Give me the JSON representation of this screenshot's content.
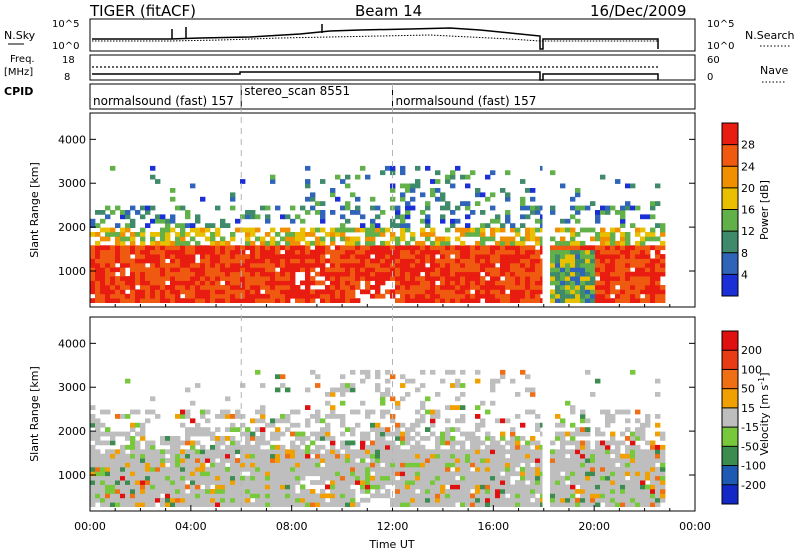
{
  "header": {
    "station": "TIGER (fitACF)",
    "beam": "Beam 14",
    "date": "16/Dec/2009"
  },
  "strip_labels": {
    "nsky_label": "N.Sky",
    "nsky_ticks": [
      "10^5",
      "10^0"
    ],
    "nsearch_ticks": [
      "10^5",
      "10^0"
    ],
    "nsearch_label": "N.Search",
    "freq_label": "Freq.",
    "freq_unit": "[MHz]",
    "freq_ticks": [
      "18",
      "8"
    ],
    "nave_ticks": [
      "60",
      "0"
    ],
    "nave_label": "Nave",
    "cpid_label": "CPID"
  },
  "cpid_segments": [
    {
      "label": "normalsound (fast) 157",
      "start_h": 0.0,
      "end_h": 6.0
    },
    {
      "label": "stereo_scan 8551",
      "start_h": 6.0,
      "end_h": 12.0
    },
    {
      "label": "normalsound (fast) 157",
      "start_h": 12.0,
      "end_h": 22.7
    }
  ],
  "chart_data": [
    {
      "type": "heatmap",
      "quantity": "Power",
      "ylabel": "Slant Range [km]",
      "yticks": [
        "1000",
        "2000",
        "3000",
        "4000"
      ],
      "ylim": [
        180,
        4600
      ],
      "xlim": [
        0,
        24
      ],
      "colorbar_label": "Power [dB]",
      "colorbar_ticks": [
        "4",
        "8",
        "12",
        "16",
        "20",
        "24",
        "28"
      ],
      "colorbar_range": [
        0,
        32
      ],
      "colors": [
        "#1a2fd6",
        "#2f64b8",
        "#3f8a6a",
        "#62b04a",
        "#e8c000",
        "#f09000",
        "#f05a10",
        "#e81c10"
      ],
      "data_gap_h": [
        17.95,
        18.1
      ],
      "data_end_h": 22.7
    },
    {
      "type": "heatmap",
      "quantity": "Velocity",
      "ylabel": "Slant Range [km]",
      "yticks": [
        "1000",
        "2000",
        "3000",
        "4000"
      ],
      "ylim": [
        180,
        4600
      ],
      "xlim": [
        0,
        24
      ],
      "xlabel": "Time UT",
      "xticks": [
        "00:00",
        "04:00",
        "08:00",
        "12:00",
        "16:00",
        "20:00",
        "00:00"
      ],
      "colorbar_label": "Velocity [m s",
      "colorbar_label_sup": "-1",
      "colorbar_label_end": "]",
      "colorbar_ticks": [
        "200",
        "100",
        "50",
        "15",
        "-15",
        "-50",
        "-100",
        "-200"
      ],
      "colors": [
        "#1428c8",
        "#1e5ab4",
        "#3c8c50",
        "#78c83c",
        "#bebebe",
        "#f0a000",
        "#f06e14",
        "#e83c14",
        "#e01010"
      ],
      "data_gap_h": [
        17.95,
        18.1
      ],
      "data_end_h": 22.7
    }
  ]
}
